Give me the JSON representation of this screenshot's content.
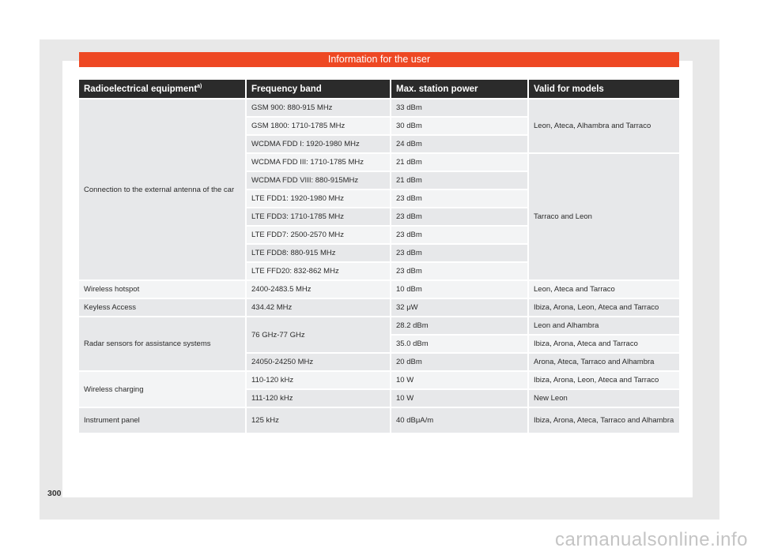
{
  "banner": {
    "title": "Information for the user"
  },
  "table": {
    "headers": [
      "Radioelectrical equipment",
      "Frequency band",
      "Max. station power",
      "Valid for models"
    ],
    "footnote_mark": "a)",
    "groups": {
      "antenna": {
        "equipment": "Connection to the external antenna of the car",
        "models_a": "Leon, Ateca, Alhambra and Tarraco",
        "models_b": "Tarraco and Leon",
        "rows": [
          {
            "band": "GSM 900: 880-915 MHz",
            "power": "33 dBm"
          },
          {
            "band": "GSM 1800: 1710-1785 MHz",
            "power": "30 dBm"
          },
          {
            "band": "WCDMA FDD I: 1920-1980 MHz",
            "power": "24 dBm"
          },
          {
            "band": "WCDMA FDD III: 1710-1785 MHz",
            "power": "21 dBm"
          },
          {
            "band": "WCDMA FDD VIII: 880-915MHz",
            "power": "21 dBm"
          },
          {
            "band": "LTE FDD1: 1920-1980 MHz",
            "power": "23 dBm"
          },
          {
            "band": "LTE FDD3: 1710-1785 MHz",
            "power": "23 dBm"
          },
          {
            "band": "LTE FDD7: 2500-2570 MHz",
            "power": "23 dBm"
          },
          {
            "band": "LTE FDD8: 880-915 MHz",
            "power": "23 dBm"
          },
          {
            "band": "LTE FFD20: 832-862 MHz",
            "power": "23 dBm"
          }
        ]
      },
      "hotspot": {
        "equipment": "Wireless hotspot",
        "band": "2400-2483.5 MHz",
        "power": "10 dBm",
        "models": "Leon, Ateca and Tarraco"
      },
      "keyless": {
        "equipment": "Keyless Access",
        "band": "434.42 MHz",
        "power": "32 μW",
        "models": "Ibiza, Arona, Leon, Ateca and Tarraco"
      },
      "radar": {
        "equipment": "Radar sensors for assistance systems",
        "band_1": "76 GHz-77 GHz",
        "row1": {
          "power": "28.2 dBm",
          "models": "Leon and Alhambra"
        },
        "row2": {
          "power": "35.0 dBm",
          "models": "Ibiza, Arona, Ateca and Tarraco"
        },
        "row3": {
          "band": "24050-24250 MHz",
          "power": "20 dBm",
          "models": "Arona, Ateca, Tarraco and Alhambra"
        }
      },
      "charging": {
        "equipment": "Wireless charging",
        "row1": {
          "band": "110-120 kHz",
          "power": "10 W",
          "models": "Ibiza, Arona, Leon, Ateca and Tarraco"
        },
        "row2": {
          "band": "111-120 kHz",
          "power": "10 W",
          "models": "New Leon"
        }
      },
      "instrument": {
        "equipment": "Instrument panel",
        "band": "125 kHz",
        "power": "40 dBμA/m",
        "models": "Ibiza, Arona, Ateca, Tarraco and Alhambra"
      }
    }
  },
  "page_number": "300",
  "watermark": "carmanualsonline.info",
  "colors": {
    "banner": "#ee4823",
    "header": "#2b2b2b",
    "cell": "#e7e8ea"
  }
}
